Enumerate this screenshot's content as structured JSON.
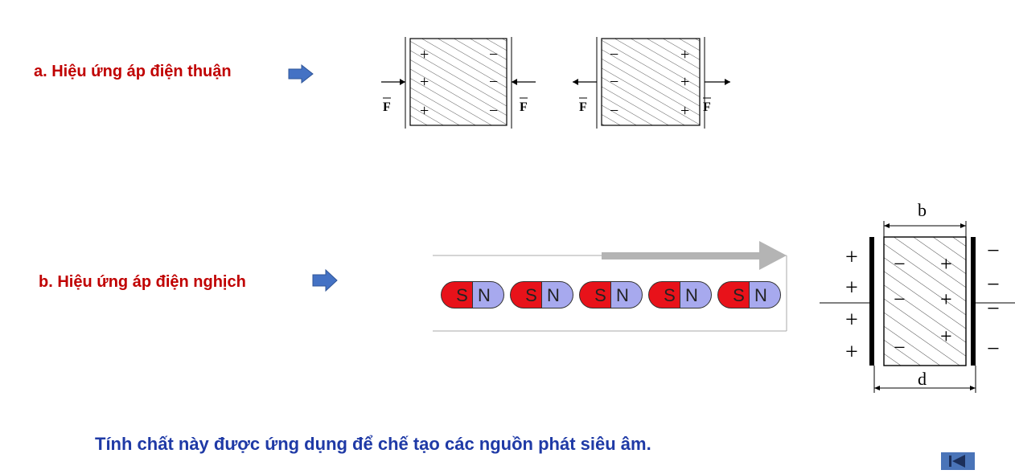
{
  "section_a": {
    "label": "a. Hiệu ứng áp điện thuận"
  },
  "section_b": {
    "label": "b. Hiệu ứng áp điện nghịch"
  },
  "footer": {
    "text": "Tính chất này được ứng dụng để chế tạo các nguồn phát siêu âm."
  },
  "diagram_a": {
    "force_label": "F",
    "left_block": {
      "left_signs": [
        "+",
        "+",
        "+"
      ],
      "right_signs": [
        "−",
        "−",
        "−"
      ]
    },
    "right_block": {
      "left_signs": [
        "−",
        "−",
        "−"
      ],
      "right_signs": [
        "+",
        "+",
        "+"
      ]
    }
  },
  "magnets": {
    "items": [
      {
        "s": "S",
        "n": "N"
      },
      {
        "s": "S",
        "n": "N"
      },
      {
        "s": "S",
        "n": "N"
      },
      {
        "s": "S",
        "n": "N"
      },
      {
        "s": "S",
        "n": "N"
      }
    ]
  },
  "diagram_b": {
    "width_label": "b",
    "depth_label": "d",
    "plus": "+",
    "minus": "−"
  },
  "colors": {
    "heading": "#c00000",
    "footer": "#1f3aa6",
    "arrow": "#4472c4",
    "magnet_s": "#e8121a",
    "magnet_n": "#a7a9ee"
  },
  "icons": {
    "heading_arrow": "right-arrow-icon",
    "nav": "back-to-start-icon"
  }
}
